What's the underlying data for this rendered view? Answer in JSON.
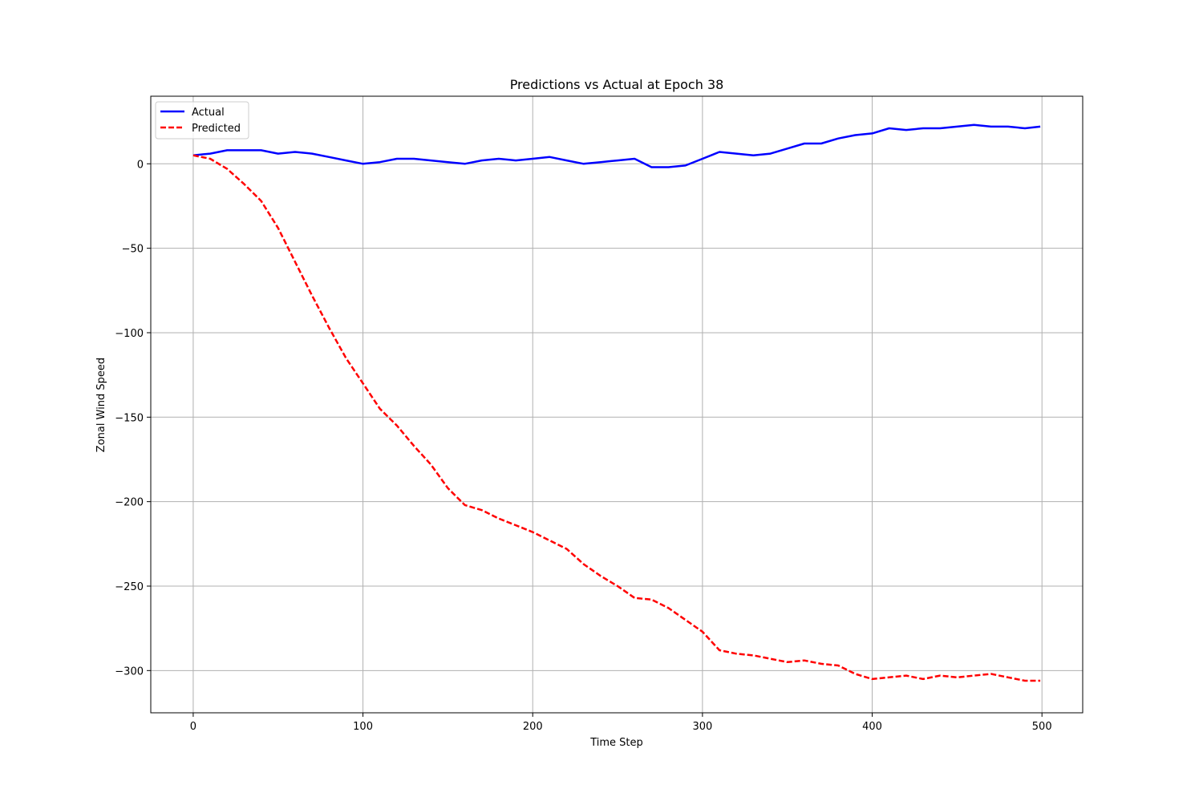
{
  "chart_data": {
    "type": "line",
    "title": "Predictions vs Actual at Epoch 38",
    "xlabel": "Time Step",
    "ylabel": "Zonal Wind Speed",
    "xlim": [
      -25,
      524
    ],
    "ylim": [
      -325,
      40
    ],
    "xticks": [
      0,
      100,
      200,
      300,
      400,
      500
    ],
    "yticks": [
      0,
      -50,
      -100,
      -150,
      -200,
      -250,
      -300
    ],
    "xtick_labels": [
      "0",
      "100",
      "200",
      "300",
      "400",
      "500"
    ],
    "ytick_labels": [
      "0",
      "−50",
      "−100",
      "−150",
      "−200",
      "−250",
      "−300"
    ],
    "grid": true,
    "legend": {
      "position": "top-left",
      "entries": [
        "Actual",
        "Predicted"
      ]
    },
    "series": [
      {
        "name": "Actual",
        "color": "#0000ff",
        "style": "solid",
        "points": [
          [
            0,
            5
          ],
          [
            10,
            6
          ],
          [
            20,
            8
          ],
          [
            30,
            8
          ],
          [
            40,
            8
          ],
          [
            50,
            6
          ],
          [
            60,
            7
          ],
          [
            70,
            6
          ],
          [
            80,
            4
          ],
          [
            90,
            2
          ],
          [
            100,
            0
          ],
          [
            110,
            1
          ],
          [
            120,
            3
          ],
          [
            130,
            3
          ],
          [
            140,
            2
          ],
          [
            150,
            1
          ],
          [
            160,
            0
          ],
          [
            170,
            2
          ],
          [
            180,
            3
          ],
          [
            190,
            2
          ],
          [
            200,
            3
          ],
          [
            210,
            4
          ],
          [
            220,
            2
          ],
          [
            230,
            0
          ],
          [
            240,
            1
          ],
          [
            250,
            2
          ],
          [
            260,
            3
          ],
          [
            270,
            -2
          ],
          [
            280,
            -2
          ],
          [
            290,
            -1
          ],
          [
            300,
            3
          ],
          [
            310,
            7
          ],
          [
            320,
            6
          ],
          [
            330,
            5
          ],
          [
            340,
            6
          ],
          [
            350,
            9
          ],
          [
            360,
            12
          ],
          [
            370,
            12
          ],
          [
            380,
            15
          ],
          [
            390,
            17
          ],
          [
            400,
            18
          ],
          [
            410,
            21
          ],
          [
            420,
            20
          ],
          [
            430,
            21
          ],
          [
            440,
            21
          ],
          [
            450,
            22
          ],
          [
            460,
            23
          ],
          [
            470,
            22
          ],
          [
            480,
            22
          ],
          [
            490,
            21
          ],
          [
            499,
            22
          ]
        ]
      },
      {
        "name": "Predicted",
        "color": "#ff0000",
        "style": "dashed",
        "points": [
          [
            0,
            5
          ],
          [
            10,
            3
          ],
          [
            20,
            -3
          ],
          [
            30,
            -12
          ],
          [
            40,
            -22
          ],
          [
            50,
            -38
          ],
          [
            60,
            -58
          ],
          [
            70,
            -78
          ],
          [
            80,
            -97
          ],
          [
            90,
            -115
          ],
          [
            100,
            -130
          ],
          [
            110,
            -145
          ],
          [
            120,
            -155
          ],
          [
            130,
            -167
          ],
          [
            140,
            -178
          ],
          [
            150,
            -192
          ],
          [
            160,
            -202
          ],
          [
            170,
            -205
          ],
          [
            180,
            -210
          ],
          [
            190,
            -214
          ],
          [
            200,
            -218
          ],
          [
            210,
            -223
          ],
          [
            220,
            -228
          ],
          [
            230,
            -237
          ],
          [
            240,
            -244
          ],
          [
            250,
            -250
          ],
          [
            260,
            -257
          ],
          [
            270,
            -258
          ],
          [
            280,
            -263
          ],
          [
            290,
            -270
          ],
          [
            300,
            -277
          ],
          [
            310,
            -288
          ],
          [
            320,
            -290
          ],
          [
            330,
            -291
          ],
          [
            340,
            -293
          ],
          [
            350,
            -295
          ],
          [
            360,
            -294
          ],
          [
            370,
            -296
          ],
          [
            380,
            -297
          ],
          [
            390,
            -302
          ],
          [
            400,
            -305
          ],
          [
            410,
            -304
          ],
          [
            420,
            -303
          ],
          [
            430,
            -305
          ],
          [
            440,
            -303
          ],
          [
            450,
            -304
          ],
          [
            460,
            -303
          ],
          [
            470,
            -302
          ],
          [
            480,
            -304
          ],
          [
            490,
            -306
          ],
          [
            499,
            -306
          ]
        ]
      }
    ]
  }
}
